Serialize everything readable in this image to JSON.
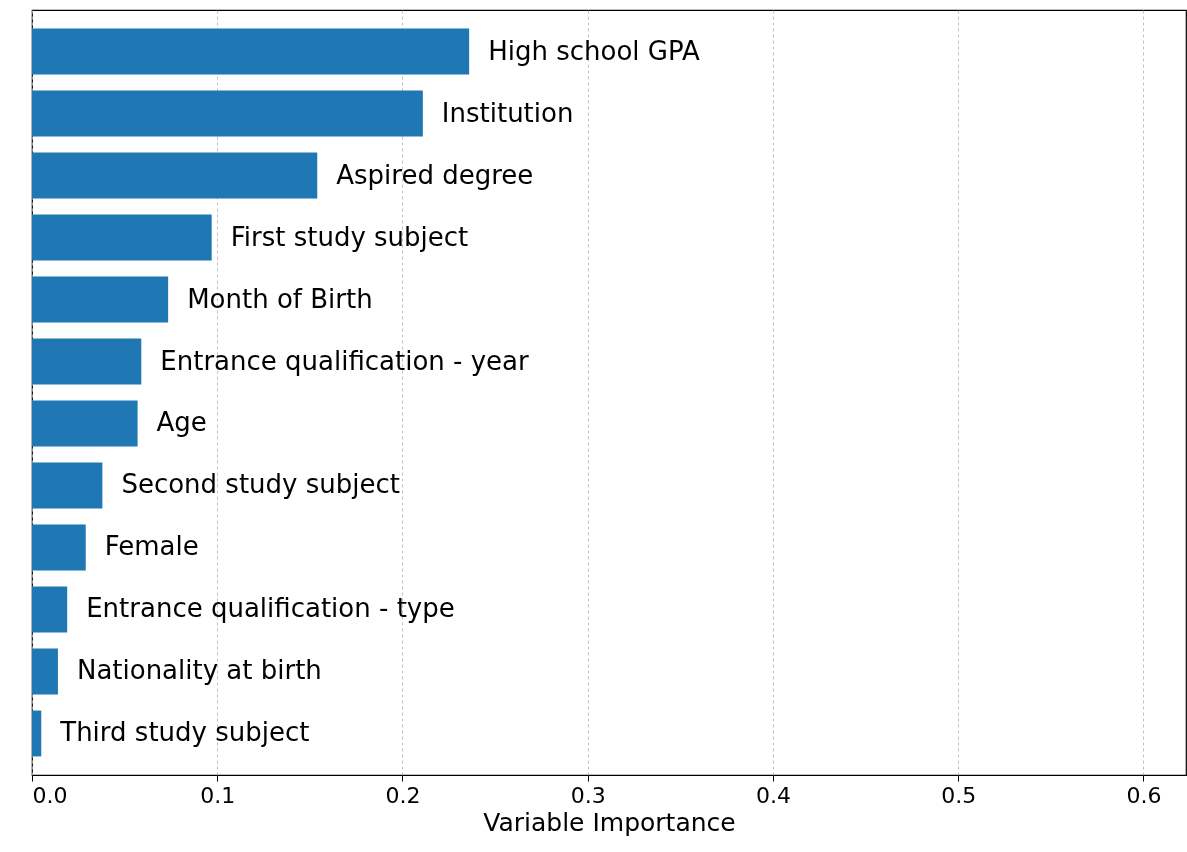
{
  "chart_data": {
    "type": "bar",
    "orientation": "horizontal",
    "xlabel": "Variable Importance",
    "categories": [
      "High school GPA",
      "Institution",
      "Aspired degree",
      "First study subject",
      "Month of Birth",
      "Entrance qualification - year",
      "Age",
      "Second study subject",
      "Female",
      "Entrance qualification - type",
      "Nationality at birth",
      "Third study subject"
    ],
    "values": [
      0.236,
      0.211,
      0.154,
      0.097,
      0.0735,
      0.059,
      0.057,
      0.038,
      0.029,
      0.019,
      0.014,
      0.005
    ],
    "color": "#1f77b4",
    "xlim": [
      0,
      0.623
    ],
    "xticks": [
      {
        "value": 0,
        "label": "0.0"
      },
      0.1,
      0.2,
      0.3,
      0.4,
      0.5,
      0.6
    ],
    "grid": "x",
    "tick_labels": "x"
  }
}
